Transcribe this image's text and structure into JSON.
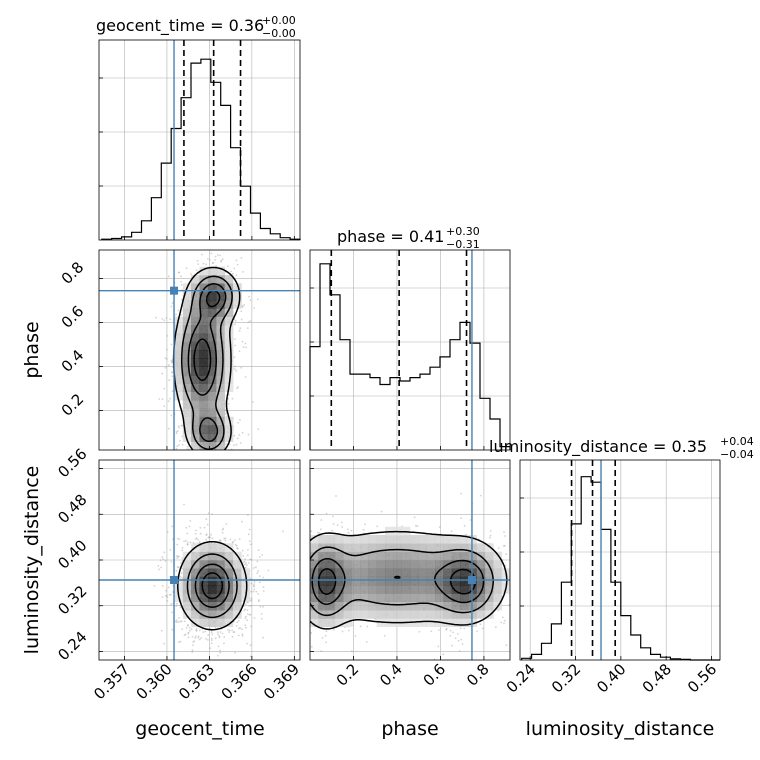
{
  "chart_data": {
    "type": "corner",
    "parameters": [
      "geocent_time",
      "phase",
      "luminosity_distance"
    ],
    "truths": {
      "geocent_time": 0.3605,
      "phase": 0.745,
      "luminosity_distance": 0.365
    },
    "colors": {
      "truth": "#4682b4",
      "line": "#000000",
      "grid": "#b0b0b0",
      "scatter": "#9e9e9e"
    },
    "grid": true,
    "diagonal": [
      {
        "param": "geocent_time",
        "title_main": "geocent_time = 0.36",
        "title_sup": "+0.00",
        "title_sub": "−0.00",
        "quantiles": [
          0.3612,
          0.3633,
          0.3652
        ],
        "xlim": [
          0.3552,
          0.3694
        ],
        "bin_edges": [
          0.3554,
          0.3561,
          0.3568,
          0.3575,
          0.3582,
          0.3589,
          0.3596,
          0.3603,
          0.361,
          0.3617,
          0.3624,
          0.3631,
          0.3638,
          0.3645,
          0.3652,
          0.3659,
          0.3666,
          0.3673,
          0.368,
          0.3687,
          0.3694
        ],
        "counts": [
          1,
          2,
          4,
          10,
          25,
          55,
          100,
          145,
          185,
          230,
          235,
          205,
          175,
          120,
          70,
          35,
          15,
          8,
          3,
          1
        ],
        "tick_labels": [
          "0.357",
          "0.360",
          "0.363",
          "0.366",
          "0.369"
        ],
        "tick_values": [
          0.357,
          0.36,
          0.363,
          0.366,
          0.369
        ],
        "ylim": [
          0,
          260
        ]
      },
      {
        "param": "phase",
        "title_main": "phase = 0.41",
        "title_sup": "+0.30",
        "title_sub": "−0.31",
        "quantiles": [
          0.098,
          0.41,
          0.72
        ],
        "xlim": [
          0.0,
          0.92
        ],
        "bin_edges": [
          0.0,
          0.046,
          0.092,
          0.138,
          0.184,
          0.23,
          0.276,
          0.322,
          0.368,
          0.414,
          0.46,
          0.506,
          0.552,
          0.598,
          0.644,
          0.69,
          0.736,
          0.782,
          0.828,
          0.874,
          0.92
        ],
        "counts": [
          150,
          270,
          225,
          160,
          110,
          110,
          105,
          95,
          105,
          100,
          105,
          110,
          120,
          135,
          160,
          185,
          155,
          75,
          45,
          5
        ],
        "tick_labels": [
          "0.2",
          "0.4",
          "0.6",
          "0.8"
        ],
        "tick_values": [
          0.2,
          0.4,
          0.6,
          0.8
        ],
        "ylim": [
          0,
          290
        ]
      },
      {
        "param": "luminosity_distance",
        "title_main": "luminosity_distance = 0.35",
        "title_sup": "+0.04",
        "title_sub": "−0.04",
        "quantiles": [
          0.313,
          0.35,
          0.39
        ],
        "xlim": [
          0.222,
          0.575
        ],
        "bin_edges": [
          0.225,
          0.2425,
          0.26,
          0.2775,
          0.295,
          0.3125,
          0.33,
          0.3475,
          0.365,
          0.3825,
          0.4,
          0.4175,
          0.435,
          0.4525,
          0.47,
          0.4875,
          0.505,
          0.5225,
          0.54,
          0.5575,
          0.575
        ],
        "counts": [
          3,
          10,
          30,
          65,
          140,
          245,
          330,
          320,
          235,
          140,
          80,
          45,
          22,
          10,
          5,
          2,
          1,
          0,
          0,
          0
        ],
        "tick_labels": [
          "0.24",
          "0.32",
          "0.40",
          "0.48",
          "0.56"
        ],
        "tick_values": [
          0.24,
          0.32,
          0.4,
          0.48,
          0.56
        ],
        "ylim": [
          0,
          360
        ]
      }
    ],
    "pairs": [
      {
        "x_param": "geocent_time",
        "y_param": "phase",
        "xlim": [
          0.3552,
          0.3694
        ],
        "ylim": [
          0.02,
          0.93
        ],
        "y_tick_labels": [
          "0.2",
          "0.4",
          "0.6",
          "0.8"
        ],
        "y_tick_values": [
          0.2,
          0.4,
          0.6,
          0.8
        ],
        "modes": [
          {
            "x": 0.3634,
            "y": 0.72,
            "sx": 0.0009,
            "sy": 0.065,
            "w": 0.32
          },
          {
            "x": 0.363,
            "y": 0.1,
            "sx": 0.0008,
            "sy": 0.06,
            "w": 0.28
          },
          {
            "x": 0.3625,
            "y": 0.43,
            "sx": 0.001,
            "sy": 0.16,
            "w": 0.4
          }
        ]
      },
      {
        "x_param": "geocent_time",
        "y_param": "luminosity_distance",
        "xlim": [
          0.3552,
          0.3694
        ],
        "ylim": [
          0.225,
          0.575
        ],
        "y_tick_labels": [
          "0.24",
          "0.32",
          "0.40",
          "0.48",
          "0.56"
        ],
        "y_tick_values": [
          0.24,
          0.32,
          0.4,
          0.48,
          0.56
        ],
        "modes": [
          {
            "x": 0.3632,
            "y": 0.355,
            "sx": 0.0012,
            "sy": 0.038,
            "w": 1.0
          }
        ]
      },
      {
        "x_param": "phase",
        "y_param": "luminosity_distance",
        "xlim": [
          0.0,
          0.92
        ],
        "ylim": [
          0.225,
          0.575
        ],
        "modes": [
          {
            "x": 0.07,
            "y": 0.36,
            "sx": 0.06,
            "sy": 0.04,
            "w": 0.35
          },
          {
            "x": 0.72,
            "y": 0.36,
            "sx": 0.08,
            "sy": 0.035,
            "w": 0.35
          },
          {
            "x": 0.4,
            "y": 0.37,
            "sx": 0.25,
            "sy": 0.045,
            "w": 0.3
          }
        ]
      }
    ],
    "xlabels": [
      "geocent_time",
      "phase",
      "luminosity_distance"
    ],
    "ylabels": [
      "phase",
      "luminosity_distance"
    ]
  }
}
